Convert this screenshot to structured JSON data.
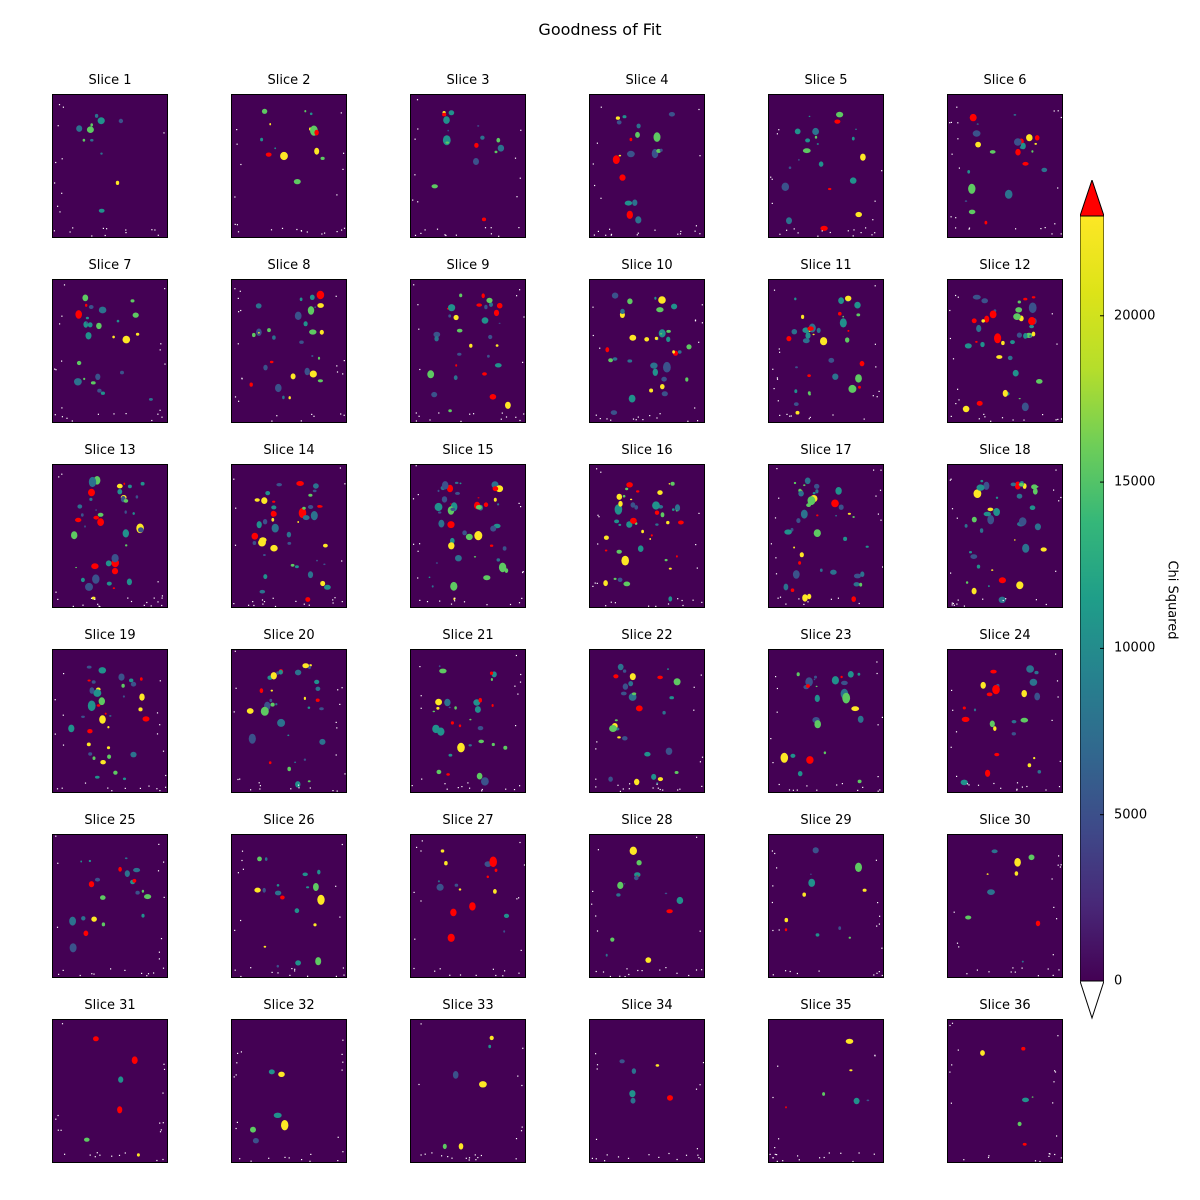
{
  "chart_data": {
    "type": "heatmap",
    "title": "Goodness of Fit",
    "panels": [
      "Slice 1",
      "Slice 2",
      "Slice 3",
      "Slice 4",
      "Slice 5",
      "Slice 6",
      "Slice 7",
      "Slice 8",
      "Slice 9",
      "Slice 10",
      "Slice 11",
      "Slice 12",
      "Slice 13",
      "Slice 14",
      "Slice 15",
      "Slice 16",
      "Slice 17",
      "Slice 18",
      "Slice 19",
      "Slice 20",
      "Slice 21",
      "Slice 22",
      "Slice 23",
      "Slice 24",
      "Slice 25",
      "Slice 26",
      "Slice 27",
      "Slice 28",
      "Slice 29",
      "Slice 30",
      "Slice 31",
      "Slice 32",
      "Slice 33",
      "Slice 34",
      "Slice 35",
      "Slice 36"
    ],
    "grid": {
      "rows": 6,
      "cols": 6
    },
    "colorbar": {
      "label": "Chi Squared",
      "colormap": "viridis",
      "range": [
        0,
        23000
      ],
      "ticks": [
        0,
        5000,
        10000,
        15000,
        20000
      ],
      "extend_over_color": "#ff0000",
      "extend_under_color": "#ffffff"
    },
    "colors": {
      "background": "#440154",
      "over": "#ff0000",
      "under": "#ffffff"
    }
  }
}
